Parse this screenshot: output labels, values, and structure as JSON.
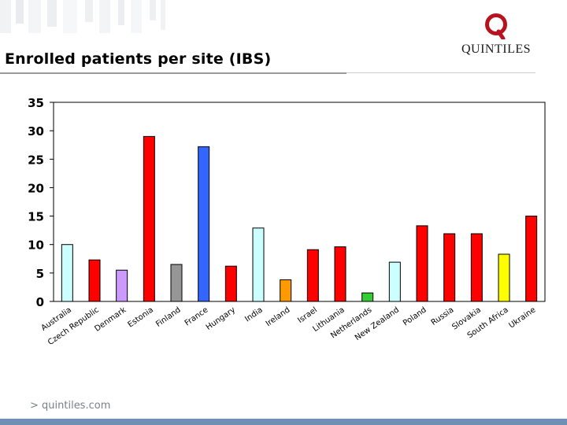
{
  "page": {
    "title": "Enrolled patients per site (IBS)",
    "footer_url": "> quintiles.com"
  },
  "logo": {
    "name": "QUINTILES",
    "mark_icon": "quintiles-q-icon",
    "color": "#b8121f"
  },
  "chart_data": {
    "type": "bar",
    "title": "",
    "xlabel": "",
    "ylabel": "",
    "ylim": [
      0,
      35
    ],
    "yticks": [
      0,
      5,
      10,
      15,
      20,
      25,
      30,
      35
    ],
    "grid": false,
    "legend": "none",
    "categories": [
      "Australia",
      "Czech Republic",
      "Denmark",
      "Estonia",
      "Finland",
      "France",
      "Hungary",
      "India",
      "Ireland",
      "Israel",
      "Lithuania",
      "Netherlands",
      "New Zealand",
      "Poland",
      "Russia",
      "Slovakia",
      "South Africa",
      "Ukraine"
    ],
    "values": [
      10,
      7.3,
      5.5,
      29,
      6.5,
      27.2,
      6.2,
      12.9,
      3.8,
      9.1,
      9.6,
      1.5,
      6.9,
      13.3,
      11.9,
      11.9,
      8.3,
      15
    ],
    "colors": [
      "#ccffff",
      "#ff0000",
      "#cc99ff",
      "#ff0000",
      "#969696",
      "#3366ff",
      "#ff0000",
      "#ccffff",
      "#ff9900",
      "#ff0000",
      "#ff0000",
      "#33cc33",
      "#ccffff",
      "#ff0000",
      "#ff0000",
      "#ff0000",
      "#ffff00",
      "#ff0000"
    ]
  }
}
